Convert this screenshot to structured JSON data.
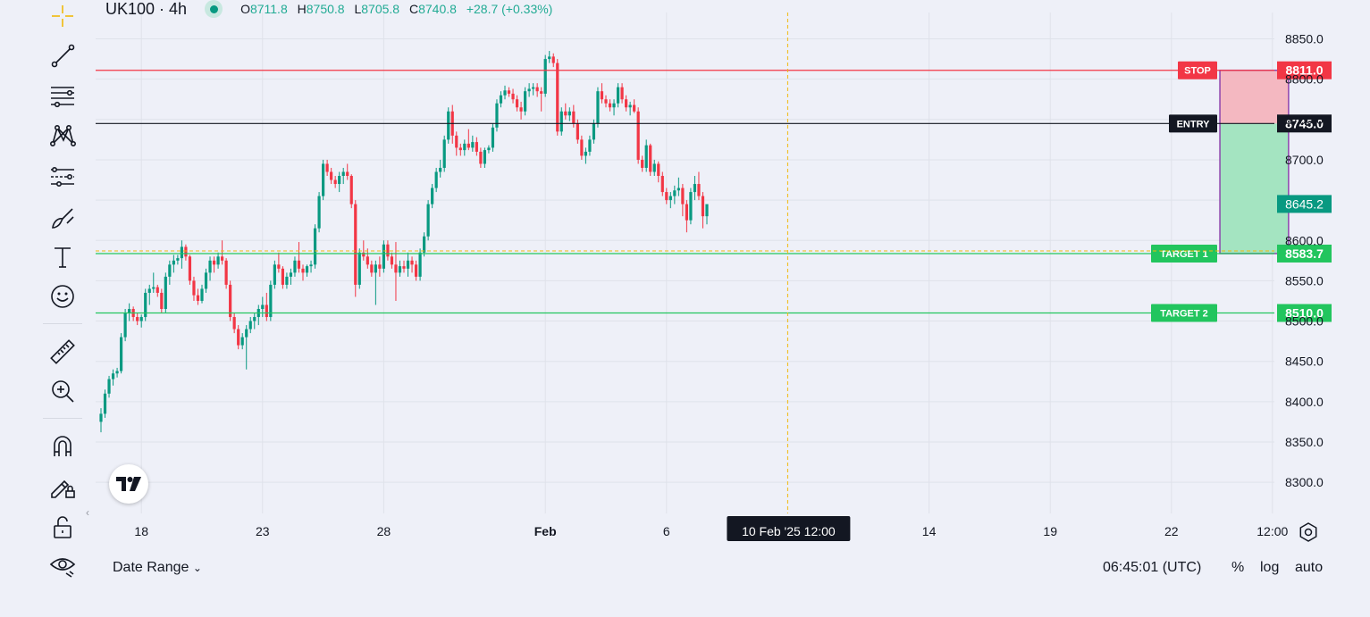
{
  "header": {
    "symbol": "UK100 · 4h",
    "o_label": "O",
    "o_value": "8711.8",
    "h_label": "H",
    "h_value": "8750.8",
    "l_label": "L",
    "l_value": "8705.8",
    "c_label": "C",
    "c_value": "8740.8",
    "change": "+28.7 (+0.33%)"
  },
  "toolbar": {
    "icons": [
      "crosshair-icon",
      "trend-line-icon",
      "horizontal-lines-icon",
      "pattern-icon",
      "forecast-icon",
      "brush-icon",
      "text-icon",
      "emoji-icon",
      "ruler-icon",
      "zoom-in-icon",
      "magnet-icon",
      "lock-drawings-icon",
      "unlock-icon",
      "eye-icon"
    ]
  },
  "bottom": {
    "date_range": "Date Range",
    "clock": "06:45:01 (UTC)",
    "percent": "%",
    "log": "log",
    "auto": "auto"
  },
  "colors": {
    "up": "#089981",
    "down": "#f23645",
    "stop": "#f23645",
    "entry": "#131722",
    "target": "#22c55e",
    "loss_zone": "#f4b8c1",
    "profit_zone": "#a4e4c1",
    "crosshair": "#f0b90b"
  },
  "chart_data": {
    "type": "candlestick",
    "y_axis": {
      "min": 8270,
      "max": 8870,
      "ticks": [
        "8300.0",
        "8350.0",
        "8400.0",
        "8450.0",
        "8500.0",
        "8550.0",
        "8600.0",
        "8650.0",
        "8700.0",
        "8750.0",
        "8800.0",
        "8850.0"
      ]
    },
    "x_axis": {
      "ticks": [
        {
          "label": "18",
          "bar": 10
        },
        {
          "label": "23",
          "bar": 40
        },
        {
          "label": "28",
          "bar": 70
        },
        {
          "label": "Feb",
          "bar": 110
        },
        {
          "label": "6",
          "bar": 140
        },
        {
          "label": "14",
          "bar": 205
        },
        {
          "label": "19",
          "bar": 235
        },
        {
          "label": "22",
          "bar": 265
        },
        {
          "label": "12:00",
          "bar": 290
        }
      ]
    },
    "crosshair": {
      "label": "10 Feb '25    12:00",
      "bar": 170,
      "price": 8583.7
    },
    "current_price": "8645.2",
    "levels": [
      {
        "name": "STOP",
        "price": 8811.0,
        "label": "8811.0"
      },
      {
        "name": "ENTRY",
        "price": 8745.0,
        "label": "8745.0"
      },
      {
        "name": "TARGET 1",
        "price": 8583.7,
        "label": "8583.7"
      },
      {
        "name": "TARGET 2",
        "price": 8510.0,
        "label": "8510.0"
      }
    ],
    "position": {
      "entry": 8745.0,
      "stop": 8811.0,
      "target": 8583.7,
      "start_bar": 277,
      "end_bar": 294
    },
    "candles": [
      [
        8375,
        8392,
        8362,
        8385
      ],
      [
        8385,
        8415,
        8380,
        8410
      ],
      [
        8410,
        8432,
        8405,
        8428
      ],
      [
        8428,
        8440,
        8420,
        8435
      ],
      [
        8435,
        8442,
        8430,
        8438
      ],
      [
        8438,
        8485,
        8435,
        8480
      ],
      [
        8480,
        8515,
        8475,
        8510
      ],
      [
        8510,
        8522,
        8500,
        8515
      ],
      [
        8515,
        8518,
        8500,
        8505
      ],
      [
        8505,
        8510,
        8495,
        8500
      ],
      [
        8500,
        8508,
        8492,
        8505
      ],
      [
        8505,
        8540,
        8500,
        8535
      ],
      [
        8535,
        8545,
        8520,
        8540
      ],
      [
        8540,
        8560,
        8535,
        8542
      ],
      [
        8542,
        8545,
        8530,
        8535
      ],
      [
        8535,
        8540,
        8510,
        8515
      ],
      [
        8515,
        8560,
        8510,
        8555
      ],
      [
        8555,
        8575,
        8545,
        8570
      ],
      [
        8570,
        8582,
        8560,
        8575
      ],
      [
        8575,
        8582,
        8570,
        8578
      ],
      [
        8578,
        8600,
        8565,
        8592
      ],
      [
        8592,
        8595,
        8575,
        8580
      ],
      [
        8580,
        8582,
        8545,
        8550
      ],
      [
        8550,
        8555,
        8525,
        8532
      ],
      [
        8532,
        8540,
        8520,
        8525
      ],
      [
        8525,
        8545,
        8522,
        8540
      ],
      [
        8540,
        8565,
        8535,
        8560
      ],
      [
        8560,
        8580,
        8550,
        8575
      ],
      [
        8575,
        8580,
        8560,
        8570
      ],
      [
        8570,
        8585,
        8565,
        8580
      ],
      [
        8580,
        8600,
        8570,
        8575
      ],
      [
        8575,
        8578,
        8540,
        8545
      ],
      [
        8545,
        8550,
        8500,
        8505
      ],
      [
        8505,
        8510,
        8485,
        8490
      ],
      [
        8490,
        8495,
        8465,
        8470
      ],
      [
        8470,
        8485,
        8465,
        8480
      ],
      [
        8480,
        8495,
        8440,
        8490
      ],
      [
        8490,
        8505,
        8485,
        8500
      ],
      [
        8500,
        8510,
        8490,
        8505
      ],
      [
        8505,
        8520,
        8495,
        8515
      ],
      [
        8515,
        8530,
        8505,
        8520
      ],
      [
        8520,
        8535,
        8500,
        8505
      ],
      [
        8505,
        8550,
        8500,
        8545
      ],
      [
        8545,
        8575,
        8540,
        8570
      ],
      [
        8570,
        8585,
        8560,
        8565
      ],
      [
        8565,
        8568,
        8540,
        8545
      ],
      [
        8545,
        8560,
        8540,
        8555
      ],
      [
        8555,
        8565,
        8545,
        8560
      ],
      [
        8560,
        8580,
        8555,
        8575
      ],
      [
        8575,
        8598,
        8560,
        8565
      ],
      [
        8565,
        8570,
        8550,
        8560
      ],
      [
        8560,
        8570,
        8555,
        8568
      ],
      [
        8568,
        8575,
        8560,
        8570
      ],
      [
        8570,
        8620,
        8565,
        8615
      ],
      [
        8615,
        8660,
        8610,
        8655
      ],
      [
        8655,
        8700,
        8650,
        8695
      ],
      [
        8695,
        8700,
        8680,
        8685
      ],
      [
        8685,
        8690,
        8670,
        8675
      ],
      [
        8675,
        8680,
        8665,
        8670
      ],
      [
        8670,
        8685,
        8660,
        8680
      ],
      [
        8680,
        8690,
        8670,
        8685
      ],
      [
        8685,
        8695,
        8675,
        8680
      ],
      [
        8680,
        8682,
        8640,
        8645
      ],
      [
        8645,
        8650,
        8530,
        8545
      ],
      [
        8545,
        8590,
        8540,
        8585
      ],
      [
        8585,
        8600,
        8575,
        8580
      ],
      [
        8580,
        8590,
        8565,
        8570
      ],
      [
        8570,
        8575,
        8555,
        8560
      ],
      [
        8560,
        8575,
        8520,
        8570
      ],
      [
        8570,
        8580,
        8555,
        8565
      ],
      [
        8565,
        8600,
        8560,
        8595
      ],
      [
        8595,
        8600,
        8575,
        8580
      ],
      [
        8580,
        8585,
        8565,
        8570
      ],
      [
        8570,
        8598,
        8525,
        8560
      ],
      [
        8560,
        8575,
        8555,
        8568
      ],
      [
        8568,
        8575,
        8560,
        8565
      ],
      [
        8565,
        8585,
        8555,
        8575
      ],
      [
        8575,
        8580,
        8560,
        8570
      ],
      [
        8570,
        8575,
        8550,
        8555
      ],
      [
        8555,
        8590,
        8550,
        8585
      ],
      [
        8585,
        8610,
        8580,
        8605
      ],
      [
        8605,
        8650,
        8600,
        8645
      ],
      [
        8645,
        8670,
        8640,
        8665
      ],
      [
        8665,
        8690,
        8660,
        8685
      ],
      [
        8685,
        8700,
        8678,
        8690
      ],
      [
        8690,
        8730,
        8685,
        8725
      ],
      [
        8725,
        8765,
        8720,
        8760
      ],
      [
        8760,
        8768,
        8720,
        8730
      ],
      [
        8730,
        8735,
        8705,
        8715
      ],
      [
        8715,
        8720,
        8705,
        8712
      ],
      [
        8712,
        8725,
        8705,
        8720
      ],
      [
        8720,
        8738,
        8712,
        8715
      ],
      [
        8715,
        8730,
        8710,
        8722
      ],
      [
        8722,
        8728,
        8705,
        8710
      ],
      [
        8710,
        8715,
        8690,
        8695
      ],
      [
        8695,
        8715,
        8690,
        8712
      ],
      [
        8712,
        8718,
        8708,
        8715
      ],
      [
        8715,
        8745,
        8710,
        8740
      ],
      [
        8740,
        8775,
        8735,
        8770
      ],
      [
        8770,
        8785,
        8765,
        8780
      ],
      [
        8780,
        8792,
        8775,
        8786
      ],
      [
        8786,
        8790,
        8778,
        8782
      ],
      [
        8782,
        8788,
        8770,
        8775
      ],
      [
        8775,
        8780,
        8760,
        8765
      ],
      [
        8765,
        8772,
        8750,
        8760
      ],
      [
        8760,
        8790,
        8755,
        8785
      ],
      [
        8785,
        8795,
        8778,
        8788
      ],
      [
        8788,
        8795,
        8780,
        8790
      ],
      [
        8790,
        8795,
        8778,
        8785
      ],
      [
        8785,
        8790,
        8760,
        8782
      ],
      [
        8782,
        8830,
        8778,
        8825
      ],
      [
        8825,
        8835,
        8820,
        8828
      ],
      [
        8828,
        8832,
        8815,
        8820
      ],
      [
        8820,
        8825,
        8730,
        8735
      ],
      [
        8735,
        8765,
        8730,
        8760
      ],
      [
        8760,
        8770,
        8750,
        8755
      ],
      [
        8755,
        8765,
        8748,
        8760
      ],
      [
        8760,
        8768,
        8740,
        8745
      ],
      [
        8745,
        8750,
        8720,
        8725
      ],
      [
        8725,
        8730,
        8700,
        8705
      ],
      [
        8705,
        8715,
        8695,
        8710
      ],
      [
        8710,
        8730,
        8705,
        8725
      ],
      [
        8725,
        8750,
        8720,
        8745
      ],
      [
        8745,
        8790,
        8740,
        8785
      ],
      [
        8785,
        8795,
        8770,
        8775
      ],
      [
        8775,
        8780,
        8765,
        8770
      ],
      [
        8770,
        8775,
        8760,
        8765
      ],
      [
        8765,
        8775,
        8755,
        8770
      ],
      [
        8770,
        8795,
        8765,
        8790
      ],
      [
        8790,
        8795,
        8770,
        8775
      ],
      [
        8775,
        8780,
        8760,
        8765
      ],
      [
        8765,
        8772,
        8755,
        8768
      ],
      [
        8768,
        8775,
        8758,
        8760
      ],
      [
        8760,
        8765,
        8695,
        8700
      ],
      [
        8700,
        8705,
        8685,
        8690
      ],
      [
        8690,
        8725,
        8685,
        8718
      ],
      [
        8718,
        8720,
        8680,
        8685
      ],
      [
        8685,
        8700,
        8680,
        8695
      ],
      [
        8695,
        8698,
        8672,
        8680
      ],
      [
        8680,
        8685,
        8655,
        8660
      ],
      [
        8660,
        8665,
        8645,
        8650
      ],
      [
        8650,
        8660,
        8640,
        8655
      ],
      [
        8655,
        8668,
        8645,
        8662
      ],
      [
        8662,
        8678,
        8655,
        8665
      ],
      [
        8665,
        8670,
        8630,
        8645
      ],
      [
        8645,
        8650,
        8610,
        8625
      ],
      [
        8625,
        8665,
        8620,
        8660
      ],
      [
        8660,
        8680,
        8650,
        8670
      ],
      [
        8670,
        8685,
        8650,
        8655
      ],
      [
        8655,
        8660,
        8615,
        8630
      ],
      [
        8630,
        8640,
        8620,
        8645
      ]
    ]
  }
}
